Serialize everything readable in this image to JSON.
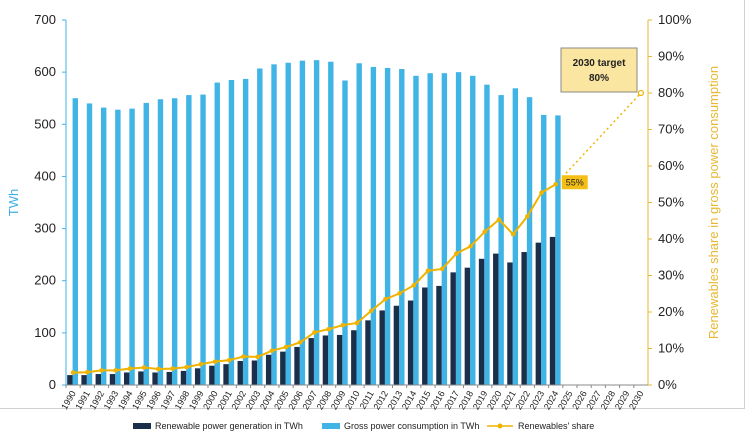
{
  "chart_data": {
    "type": "bar",
    "categories": [
      "1990",
      "1991",
      "1992",
      "1993",
      "1994",
      "1995",
      "1996",
      "1997",
      "1998",
      "1999",
      "2000",
      "2001",
      "2002",
      "2003",
      "2004",
      "2005",
      "2006",
      "2007",
      "2008",
      "2009",
      "2010",
      "2011",
      "2012",
      "2013",
      "2014",
      "2015",
      "2016",
      "2017",
      "2018",
      "2019",
      "2020",
      "2021",
      "2022",
      "2023",
      "2024",
      "2025",
      "2026",
      "2027",
      "2028",
      "2029",
      "2030"
    ],
    "series": [
      {
        "name": "Renewable power generation in TWh",
        "kind": "bar",
        "axis": "left",
        "color": "#1b2f4b",
        "values": [
          19,
          19,
          21,
          21,
          24,
          26,
          24,
          25,
          27,
          32,
          37,
          40,
          46,
          47,
          58,
          64,
          73,
          90,
          95,
          96,
          105,
          124,
          143,
          152,
          162,
          187,
          190,
          216,
          225,
          242,
          252,
          235,
          255,
          273,
          284,
          null,
          null,
          null,
          null,
          null,
          null
        ]
      },
      {
        "name": "Gross power consumption in TWh",
        "kind": "bar",
        "axis": "left",
        "color": "#41b4e6",
        "values": [
          550,
          540,
          532,
          528,
          530,
          541,
          548,
          550,
          556,
          557,
          580,
          585,
          587,
          607,
          615,
          618,
          622,
          623,
          620,
          584,
          617,
          610,
          608,
          606,
          593,
          598,
          598,
          600,
          593,
          576,
          556,
          569,
          552,
          518,
          517,
          null,
          null,
          null,
          null,
          null,
          null
        ]
      },
      {
        "name": "Renewables' share",
        "kind": "line",
        "axis": "right",
        "color": "#f0b400",
        "values": [
          3.4,
          3.5,
          4,
          4,
          4.5,
          4.8,
          4.4,
          4.5,
          4.9,
          5.7,
          6.4,
          6.8,
          7.8,
          7.7,
          9.4,
          10.4,
          11.7,
          14.4,
          15.3,
          16.4,
          17,
          20.3,
          23.5,
          25.1,
          27.3,
          31.3,
          31.8,
          36,
          38,
          42,
          45.3,
          41.3,
          46.2,
          52.7,
          55,
          null,
          null,
          null,
          null,
          null,
          null
        ]
      }
    ],
    "ylabel": "TWh",
    "ylim": [
      0,
      700
    ],
    "yticks": [
      "0",
      "100",
      "200",
      "300",
      "400",
      "500",
      "600",
      "700"
    ],
    "y2label": "Renewables share in gross power consumption",
    "y2lim": [
      0,
      100
    ],
    "y2ticks": [
      "0%",
      "10%",
      "20%",
      "30%",
      "40%",
      "50%",
      "60%",
      "70%",
      "80%",
      "90%",
      "100%"
    ],
    "target": {
      "year": "2030",
      "value": 80,
      "label_line1": "2030 target",
      "label_line2": "80%"
    },
    "current_label": "55%",
    "legend_position": "bottom",
    "grid": false
  }
}
